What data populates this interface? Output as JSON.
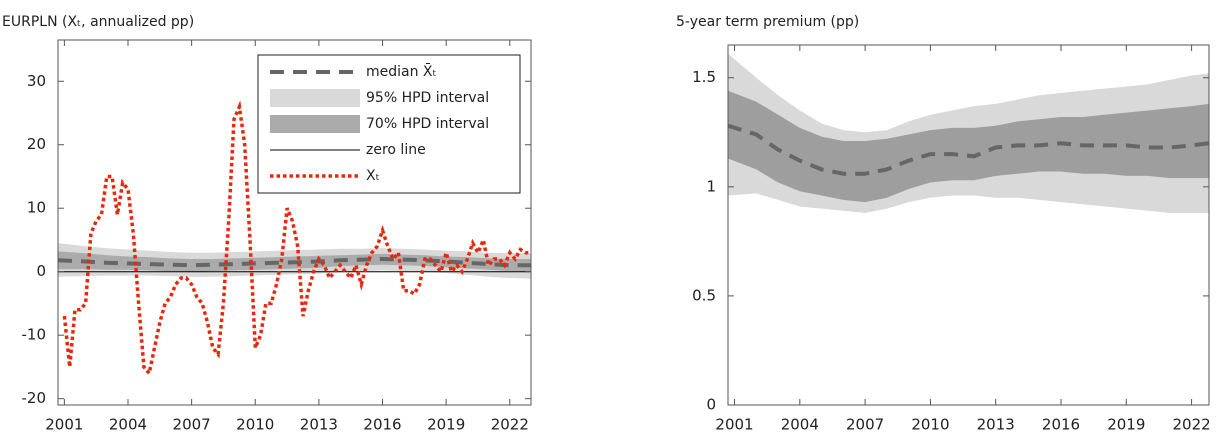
{
  "chart_data": [
    {
      "type": "line",
      "title": "EURPLN (Xₜ, annualized pp)",
      "xlim": [
        2000.7,
        2023
      ],
      "xticks": [
        2001,
        2004,
        2007,
        2010,
        2013,
        2016,
        2019,
        2022
      ],
      "ylim": [
        -21,
        36.5
      ],
      "yticks": [
        -20,
        -10,
        0,
        10,
        20,
        30
      ],
      "legend": "upper right",
      "series": [
        {
          "name": "median X̄ₜ",
          "color": "#666666",
          "style": "dashed",
          "x": [
            2000.7,
            2002,
            2003,
            2004,
            2005,
            2006,
            2007,
            2008,
            2009,
            2010,
            2011,
            2012,
            2013,
            2014,
            2015,
            2016,
            2017,
            2018,
            2019,
            2020,
            2021,
            2022,
            2023
          ],
          "values": [
            1.8,
            1.6,
            1.4,
            1.3,
            1.2,
            1.1,
            1.0,
            1.1,
            1.2,
            1.3,
            1.4,
            1.5,
            1.6,
            1.8,
            1.9,
            2.0,
            1.9,
            1.8,
            1.6,
            1.4,
            1.2,
            1.0,
            1.0
          ]
        },
        {
          "name": "95% HPD interval",
          "color": "#d9d9d9",
          "x": [
            2000.7,
            2002,
            2003,
            2004,
            2005,
            2006,
            2007,
            2008,
            2009,
            2010,
            2011,
            2012,
            2013,
            2014,
            2015,
            2016,
            2017,
            2018,
            2019,
            2020,
            2021,
            2022,
            2023
          ],
          "upper": [
            4.5,
            4.0,
            3.7,
            3.5,
            3.3,
            3.1,
            3.0,
            3.0,
            3.1,
            3.2,
            3.3,
            3.4,
            3.5,
            3.6,
            3.6,
            3.7,
            3.6,
            3.5,
            3.3,
            3.2,
            3.0,
            2.9,
            2.9
          ],
          "lower": [
            -0.8,
            -0.7,
            -0.6,
            -0.6,
            -0.6,
            -0.7,
            -0.8,
            -0.8,
            -0.7,
            -0.6,
            -0.5,
            -0.4,
            -0.3,
            -0.1,
            0.1,
            0.2,
            0.1,
            0.0,
            -0.2,
            -0.5,
            -0.8,
            -1.0,
            -1.1
          ]
        },
        {
          "name": "70% HPD interval",
          "color": "#ababab",
          "x": [
            2000.7,
            2002,
            2003,
            2004,
            2005,
            2006,
            2007,
            2008,
            2009,
            2010,
            2011,
            2012,
            2013,
            2014,
            2015,
            2016,
            2017,
            2018,
            2019,
            2020,
            2021,
            2022,
            2023
          ],
          "upper": [
            3.2,
            2.9,
            2.6,
            2.4,
            2.3,
            2.1,
            2.0,
            2.0,
            2.1,
            2.2,
            2.3,
            2.4,
            2.5,
            2.6,
            2.7,
            2.8,
            2.7,
            2.6,
            2.4,
            2.3,
            2.1,
            2.0,
            2.0
          ],
          "lower": [
            0.4,
            0.4,
            0.3,
            0.3,
            0.2,
            0.1,
            0.0,
            0.1,
            0.2,
            0.3,
            0.4,
            0.5,
            0.6,
            0.9,
            1.0,
            1.1,
            1.0,
            0.9,
            0.7,
            0.5,
            0.3,
            0.1,
            0.0
          ]
        },
        {
          "name": "zero line",
          "color": "#000000",
          "style": "solid",
          "value": 0
        },
        {
          "name": "Xₜ",
          "color": "#e8280c",
          "style": "dotted",
          "x": [
            2001,
            2001.25,
            2001.5,
            2001.75,
            2002,
            2002.25,
            2002.5,
            2002.75,
            2003,
            2003.25,
            2003.5,
            2003.75,
            2004,
            2004.25,
            2004.5,
            2004.75,
            2005,
            2005.25,
            2005.5,
            2005.75,
            2006,
            2006.25,
            2006.5,
            2006.75,
            2007,
            2007.25,
            2007.5,
            2007.75,
            2008,
            2008.25,
            2008.5,
            2008.75,
            2009,
            2009.25,
            2009.5,
            2009.75,
            2010,
            2010.25,
            2010.5,
            2010.75,
            2011,
            2011.25,
            2011.5,
            2011.75,
            2012,
            2012.25,
            2012.5,
            2012.75,
            2013,
            2013.25,
            2013.5,
            2013.75,
            2014,
            2014.25,
            2014.5,
            2014.75,
            2015,
            2015.25,
            2015.5,
            2015.75,
            2016,
            2016.25,
            2016.5,
            2016.75,
            2017,
            2017.25,
            2017.5,
            2017.75,
            2018,
            2018.25,
            2018.5,
            2018.75,
            2019,
            2019.25,
            2019.5,
            2019.75,
            2020,
            2020.25,
            2020.5,
            2020.75,
            2021,
            2021.25,
            2021.5,
            2021.75,
            2022,
            2022.25,
            2022.5,
            2022.75,
            2023
          ],
          "values": [
            -7,
            -15,
            -6,
            -6,
            -5,
            6,
            8,
            9,
            15,
            15,
            9,
            14,
            13,
            6,
            -5,
            -15,
            -16,
            -12,
            -8,
            -5,
            -4,
            -2,
            -1,
            -1,
            -2,
            -4,
            -5,
            -8,
            -12,
            -13,
            -5,
            8,
            24,
            26,
            20,
            5,
            -12,
            -10,
            -5,
            -5,
            -2,
            2,
            10,
            8,
            4,
            -7,
            -3,
            0,
            2,
            1,
            -1,
            0,
            1,
            0,
            -1,
            1,
            -2,
            1,
            3,
            4,
            6.5,
            4,
            2,
            3,
            -3,
            -3,
            -3.5,
            -2,
            2,
            2,
            1,
            0,
            3,
            0,
            1,
            0,
            2,
            4.5,
            3,
            5,
            1,
            2,
            2,
            1,
            3,
            2,
            3.5,
            3,
            3
          ]
        }
      ]
    },
    {
      "type": "line",
      "title": "5-year term premium (pp)",
      "xlim": [
        2000.7,
        2022.8
      ],
      "xticks": [
        2001,
        2004,
        2007,
        2010,
        2013,
        2016,
        2019,
        2022
      ],
      "ylim": [
        0,
        1.65
      ],
      "yticks": [
        0,
        0.5,
        1,
        1.5
      ],
      "series": [
        {
          "color": "#d9d9d9",
          "x": [
            2000.7,
            2002,
            2003,
            2004,
            2005,
            2006,
            2007,
            2008,
            2009,
            2010,
            2011,
            2012,
            2013,
            2014,
            2015,
            2016,
            2017,
            2018,
            2019,
            2020,
            2021,
            2022,
            2022.8
          ],
          "upper": [
            1.61,
            1.5,
            1.42,
            1.35,
            1.29,
            1.26,
            1.25,
            1.26,
            1.3,
            1.33,
            1.35,
            1.37,
            1.38,
            1.4,
            1.42,
            1.43,
            1.44,
            1.45,
            1.46,
            1.47,
            1.49,
            1.51,
            1.52
          ],
          "lower": [
            0.96,
            0.97,
            0.94,
            0.91,
            0.9,
            0.89,
            0.88,
            0.9,
            0.93,
            0.95,
            0.96,
            0.96,
            0.95,
            0.95,
            0.94,
            0.93,
            0.92,
            0.91,
            0.9,
            0.89,
            0.88,
            0.88,
            0.88
          ]
        },
        {
          "color": "#9e9e9e",
          "x": [
            2000.7,
            2002,
            2003,
            2004,
            2005,
            2006,
            2007,
            2008,
            2009,
            2010,
            2011,
            2012,
            2013,
            2014,
            2015,
            2016,
            2017,
            2018,
            2019,
            2020,
            2021,
            2022,
            2022.8
          ],
          "upper": [
            1.44,
            1.39,
            1.33,
            1.27,
            1.23,
            1.21,
            1.21,
            1.22,
            1.24,
            1.26,
            1.27,
            1.27,
            1.28,
            1.3,
            1.31,
            1.32,
            1.32,
            1.33,
            1.34,
            1.35,
            1.36,
            1.37,
            1.38
          ],
          "lower": [
            1.13,
            1.08,
            1.02,
            0.98,
            0.96,
            0.94,
            0.93,
            0.95,
            0.99,
            1.02,
            1.03,
            1.03,
            1.05,
            1.06,
            1.07,
            1.07,
            1.06,
            1.06,
            1.05,
            1.05,
            1.04,
            1.04,
            1.04
          ]
        },
        {
          "color": "#666666",
          "style": "dashed",
          "x": [
            2000.7,
            2002,
            2003,
            2004,
            2005,
            2006,
            2007,
            2008,
            2009,
            2010,
            2011,
            2012,
            2013,
            2014,
            2015,
            2016,
            2017,
            2018,
            2019,
            2020,
            2021,
            2022,
            2022.8
          ],
          "values": [
            1.28,
            1.24,
            1.17,
            1.12,
            1.08,
            1.06,
            1.06,
            1.08,
            1.12,
            1.15,
            1.15,
            1.14,
            1.18,
            1.19,
            1.19,
            1.2,
            1.19,
            1.19,
            1.19,
            1.18,
            1.18,
            1.19,
            1.2
          ]
        }
      ]
    }
  ]
}
